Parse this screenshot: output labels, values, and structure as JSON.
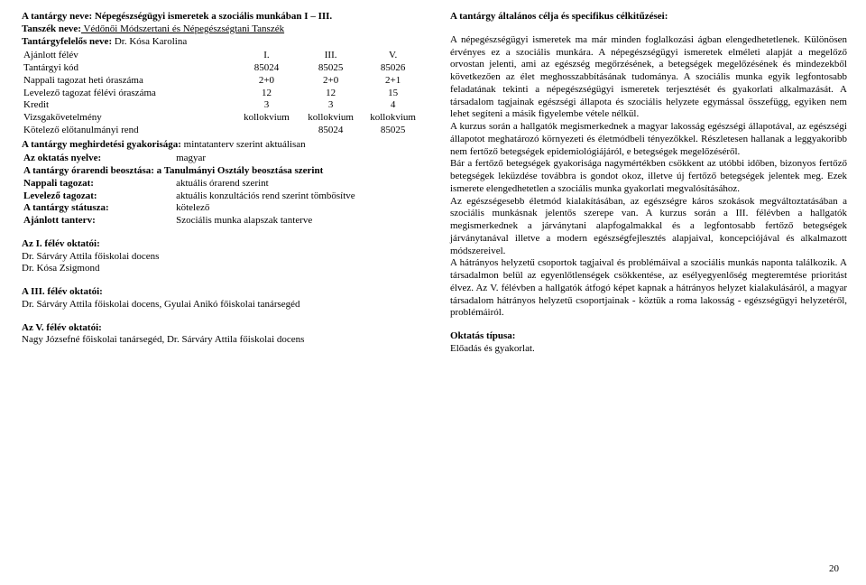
{
  "left": {
    "course_name_label": "A tantárgy neve:",
    "course_name": " Népegészségügyi ismeretek a szociális munkában I – III.",
    "dept_label": "Tanszék neve:",
    "dept": " Védőnői Módszertani és Népegészségtani Tanszék",
    "resp_label": "Tantárgyfelelős neve:",
    "resp": " Dr. Kósa Karolina",
    "table": {
      "rows": [
        [
          "Ajánlott félév",
          "I.",
          "III.",
          "V."
        ],
        [
          "Tantárgyi kód",
          "85024",
          "85025",
          "85026"
        ],
        [
          "Nappali tagozat heti óraszáma",
          "2+0",
          "2+0",
          "2+1"
        ],
        [
          "Levelező tagozat félévi óraszáma",
          "12",
          "12",
          "15"
        ],
        [
          "Kredit",
          "3",
          "3",
          "4"
        ],
        [
          "Vizsgakövetelmény",
          "kollokvium",
          "kollokvium",
          "kollokvium"
        ],
        [
          "Kötelező előtanulmányi rend",
          "",
          "85024",
          "85025"
        ]
      ]
    },
    "freq_label": "A tantárgy meghirdetési gyakorisága:",
    "freq": " mintatanterv szerint aktuálisan",
    "details": [
      [
        "Az oktatás nyelve:",
        "magyar"
      ],
      [
        "A tantárgy órarendi beosztása: a Tanulmányi Osztály beosztása szerint",
        ""
      ],
      [
        "Nappali tagozat:",
        "aktuális órarend szerint"
      ],
      [
        "Levelező tagozat:",
        "aktuális konzultációs rend szerint tömbösítve"
      ],
      [
        "A tantárgy státusza:",
        "kötelező"
      ],
      [
        "Ajánlott tanterv:",
        "Szociális munka alapszak tanterve"
      ]
    ],
    "sec1_title": "Az I. félév oktatói:",
    "sec1_lines": [
      "Dr. Sárváry Attila főiskolai docens",
      "Dr. Kósa Zsigmond"
    ],
    "sec3_title": "A III. félév oktatói:",
    "sec3_line": "Dr. Sárváry Attila főiskolai docens, Gyulai Anikó főiskolai tanársegéd",
    "sec5_title": "Az V. félév oktatói:",
    "sec5_line": "Nagy Józsefné főiskolai tanársegéd, Dr. Sárváry Attila főiskolai docens"
  },
  "right": {
    "heading": "A tantárgy általános célja és specifikus célkitűzései:",
    "p1": "A népegészségügyi ismeretek ma már minden foglalkozási ágban elengedhetetlenek. Különösen érvényes ez a szociális munkára. A népegészségügyi ismeretek elméleti alapját a megelőző orvostan jelenti, ami az egészség megőrzésének, a betegségek megelőzésének és mindezekből következően az élet meghosszabbításának tudománya. A szociális munka egyik legfontosabb feladatának tekinti a népegészségügyi ismeretek terjesztését és gyakorlati alkalmazását. A társadalom tagjainak egészségi állapota és szociális helyzete egymással összefügg, egyiken nem lehet segíteni a másik figyelembe vétele nélkül.",
    "p2": "A kurzus során a hallgatók megismerkednek a magyar lakosság egészségi állapotával, az egészségi állapotot meghatározó környezeti és életmódbeli tényezőkkel. Részletesen hallanak a leggyakoribb nem fertőző betegségek epidemiológiájáról, e betegségek megelőzéséről.",
    "p3": "Bár a fertőző betegségek gyakorisága nagymértékben csökkent az utóbbi időben, bizonyos fertőző betegségek leküzdése továbbra is gondot okoz, illetve új fertőző betegségek jelentek meg. Ezek ismerete elengedhetetlen a szociális munka gyakorlati megvalósításához.",
    "p4": "Az egészségesebb életmód kialakításában, az egészségre káros szokások megváltoztatásában a szociális munkásnak jelentős szerepe van. A kurzus során a III. félévben a hallgatók megismerkednek a járványtani alapfogalmakkal és a legfontosabb fertőző betegségek járványtanával illetve a modern egészségfejlesztés alapjaival, koncepciójával és alkalmazott módszereivel.",
    "p5": "A hátrányos helyzetű csoportok tagjaival és problémáival a szociális munkás naponta találkozik. A társadalmon belül az egyenlőtlenségek csökkentése, az esélyegyenlőség megteremtése prioritást élvez. Az V. félévben a hallgatók átfogó képet kapnak a hátrányos helyzet kialakulásáról, a magyar társadalom hátrányos helyzetű csoportjainak - köztük a roma lakosság - egészségügyi helyzetéről, problémáiról.",
    "type_label": "Oktatás típusa:",
    "type_val": "Előadás és gyakorlat."
  },
  "pagenum": "20"
}
